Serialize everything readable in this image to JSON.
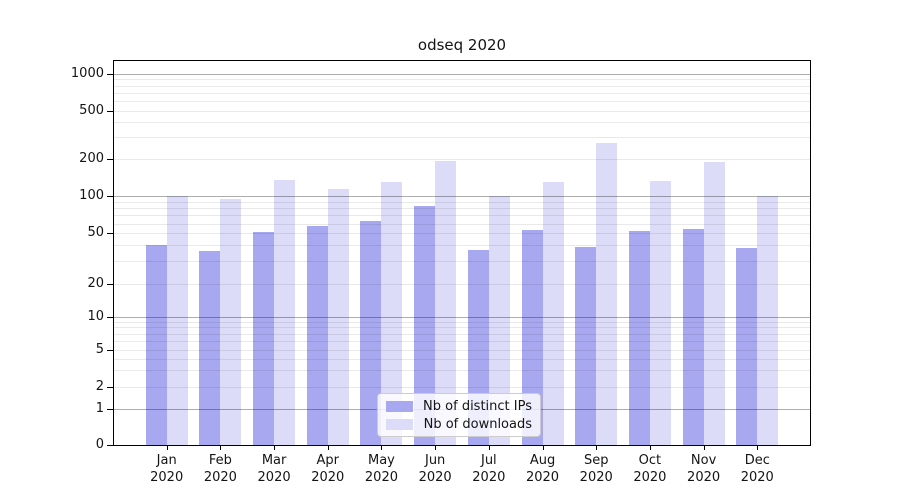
{
  "title": "odseq 2020",
  "legend": [
    {
      "key": "ips",
      "label": "Nb of distinct IPs"
    },
    {
      "key": "downloads",
      "label": "Nb of downloads"
    }
  ],
  "colors": {
    "ips": "#a8a8f0",
    "downloads": "#dcdcf8",
    "axis": "#000000",
    "grid_major": "#adadad",
    "grid_minor": "#ececec"
  },
  "chart_data": {
    "type": "bar",
    "title": "odseq 2020",
    "categories": [
      "Jan 2020",
      "Feb 2020",
      "Mar 2020",
      "Apr 2020",
      "May 2020",
      "Jun 2020",
      "Jul 2020",
      "Aug 2020",
      "Sep 2020",
      "Oct 2020",
      "Nov 2020",
      "Dec 2020"
    ],
    "series": [
      {
        "name": "Nb of distinct IPs",
        "key": "ips",
        "values": [
          40,
          36,
          51,
          57,
          63,
          84,
          37,
          53,
          39,
          52,
          54,
          38
        ]
      },
      {
        "name": "Nb of downloads",
        "key": "downloads",
        "values": [
          100,
          95,
          134,
          115,
          129,
          193,
          100,
          130,
          270,
          133,
          188,
          100
        ]
      }
    ],
    "xlabel": "",
    "ylabel": "",
    "yscale": "log-like",
    "yticks": [
      0,
      1,
      2,
      5,
      10,
      20,
      50,
      100,
      200,
      500,
      1000
    ],
    "ylim": [
      0,
      1300
    ],
    "grid": true,
    "legend_position": "lower center"
  }
}
